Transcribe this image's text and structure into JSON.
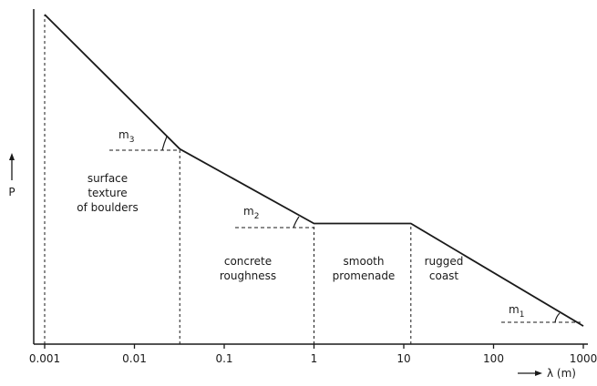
{
  "chart_data": {
    "type": "line",
    "x_scale": "log",
    "x_ticks": [
      "0.001",
      "0.01",
      "0.1",
      "1",
      "10",
      "100",
      "1000"
    ],
    "x_tick_values": [
      0.001,
      0.01,
      0.1,
      1,
      10,
      100,
      1000
    ],
    "xlabel": "λ (m)",
    "ylabel": "P",
    "curve": [
      {
        "x": 0.001,
        "y": 1.0
      },
      {
        "x": 0.032,
        "y": 0.592
      },
      {
        "x": 1,
        "y": 0.366
      },
      {
        "x": 12,
        "y": 0.366
      },
      {
        "x": 1000,
        "y": 0.055
      }
    ],
    "region_boundaries": [
      0.001,
      0.032,
      1,
      12
    ],
    "regions": [
      {
        "lines": [
          "surface",
          "texture",
          "of boulders"
        ]
      },
      {
        "lines": [
          "concrete",
          "roughness"
        ]
      },
      {
        "lines": [
          "smooth",
          "promenade"
        ]
      },
      {
        "lines": [
          "rugged",
          "coast"
        ]
      }
    ],
    "slope_labels": [
      {
        "name": "m",
        "sub": "3",
        "segment": 0
      },
      {
        "name": "m",
        "sub": "2",
        "segment": 1
      },
      {
        "name": "m",
        "sub": "1",
        "segment": 3
      }
    ],
    "grid": false,
    "colors": {
      "ink": "#1a1a1a",
      "background": "#ffffff"
    }
  }
}
